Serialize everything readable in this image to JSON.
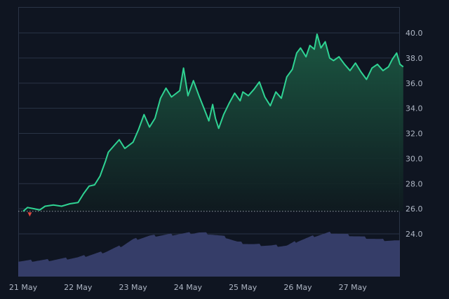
{
  "chart_data": {
    "type": "area",
    "title": "",
    "xlabel": "",
    "ylabel": "",
    "ylim": [
      21.5,
      41.5
    ],
    "grid": true,
    "y_axis_position": "right",
    "y_ticks": [
      "24.0",
      "26.0",
      "28.0",
      "30.0",
      "32.0",
      "34.0",
      "36.0",
      "38.0",
      "40.0"
    ],
    "x_ticks": [
      "21 May",
      "22 May",
      "23 May",
      "24 May",
      "25 May",
      "26 May",
      "27 May"
    ],
    "baseline": 25.8,
    "colors": {
      "background": "#0f1521",
      "line": "#2fd393",
      "area_top": "#1c5b44",
      "area_bottom": "#0f1a1f",
      "volume": "#3a4170",
      "grid": "#2a3446",
      "baseline": "#b8c0cc",
      "down_marker": "#e0483e",
      "tick_text": "#aeb6c4"
    },
    "series": [
      {
        "values": [
          [
            0,
            25.8
          ],
          [
            0.08,
            26.1
          ],
          [
            0.2,
            26.0
          ],
          [
            0.3,
            25.9
          ],
          [
            0.4,
            26.2
          ],
          [
            0.55,
            26.3
          ],
          [
            0.7,
            26.2
          ],
          [
            0.85,
            26.4
          ],
          [
            1.0,
            26.5
          ],
          [
            1.1,
            27.2
          ],
          [
            1.2,
            27.8
          ],
          [
            1.3,
            27.9
          ],
          [
            1.4,
            28.6
          ],
          [
            1.5,
            29.8
          ],
          [
            1.55,
            30.5
          ],
          [
            1.65,
            31.0
          ],
          [
            1.75,
            31.5
          ],
          [
            1.85,
            30.8
          ],
          [
            2.0,
            31.3
          ],
          [
            2.1,
            32.3
          ],
          [
            2.2,
            33.5
          ],
          [
            2.3,
            32.5
          ],
          [
            2.4,
            33.2
          ],
          [
            2.5,
            34.8
          ],
          [
            2.6,
            35.6
          ],
          [
            2.7,
            34.9
          ],
          [
            2.85,
            35.4
          ],
          [
            2.92,
            37.2
          ],
          [
            3.0,
            35.0
          ],
          [
            3.1,
            36.2
          ],
          [
            3.2,
            35.0
          ],
          [
            3.3,
            33.9
          ],
          [
            3.38,
            33.0
          ],
          [
            3.45,
            34.3
          ],
          [
            3.5,
            33.2
          ],
          [
            3.56,
            32.4
          ],
          [
            3.65,
            33.5
          ],
          [
            3.75,
            34.4
          ],
          [
            3.85,
            35.2
          ],
          [
            3.95,
            34.6
          ],
          [
            4.0,
            35.3
          ],
          [
            4.1,
            35.0
          ],
          [
            4.2,
            35.5
          ],
          [
            4.3,
            36.1
          ],
          [
            4.4,
            34.9
          ],
          [
            4.5,
            34.2
          ],
          [
            4.6,
            35.3
          ],
          [
            4.7,
            34.8
          ],
          [
            4.8,
            36.5
          ],
          [
            4.9,
            37.1
          ],
          [
            4.98,
            38.4
          ],
          [
            5.05,
            38.8
          ],
          [
            5.15,
            38.1
          ],
          [
            5.22,
            39.0
          ],
          [
            5.3,
            38.7
          ],
          [
            5.35,
            39.9
          ],
          [
            5.42,
            38.8
          ],
          [
            5.5,
            39.3
          ],
          [
            5.58,
            38.0
          ],
          [
            5.65,
            37.8
          ],
          [
            5.75,
            38.1
          ],
          [
            5.85,
            37.5
          ],
          [
            5.95,
            37.0
          ],
          [
            6.05,
            37.6
          ],
          [
            6.15,
            36.9
          ],
          [
            6.25,
            36.3
          ],
          [
            6.35,
            37.2
          ],
          [
            6.45,
            37.5
          ],
          [
            6.55,
            37.0
          ],
          [
            6.65,
            37.3
          ],
          [
            6.72,
            37.9
          ],
          [
            6.8,
            38.4
          ],
          [
            6.86,
            37.5
          ],
          [
            6.92,
            37.3
          ]
        ]
      }
    ],
    "volume": [
      [
        0,
        0.12
      ],
      [
        0.5,
        0.13
      ],
      [
        1.0,
        0.15
      ],
      [
        1.2,
        0.17
      ],
      [
        1.5,
        0.2
      ],
      [
        1.8,
        0.25
      ],
      [
        2.0,
        0.3
      ],
      [
        2.3,
        0.33
      ],
      [
        2.6,
        0.34
      ],
      [
        2.9,
        0.35
      ],
      [
        3.2,
        0.36
      ],
      [
        3.4,
        0.35
      ],
      [
        3.7,
        0.32
      ],
      [
        3.9,
        0.28
      ],
      [
        4.2,
        0.26
      ],
      [
        4.5,
        0.25
      ],
      [
        4.8,
        0.25
      ],
      [
        5.0,
        0.29
      ],
      [
        5.3,
        0.33
      ],
      [
        5.6,
        0.36
      ],
      [
        5.9,
        0.34
      ],
      [
        6.2,
        0.32
      ],
      [
        6.5,
        0.3
      ],
      [
        6.8,
        0.29
      ],
      [
        6.92,
        0.28
      ]
    ]
  }
}
